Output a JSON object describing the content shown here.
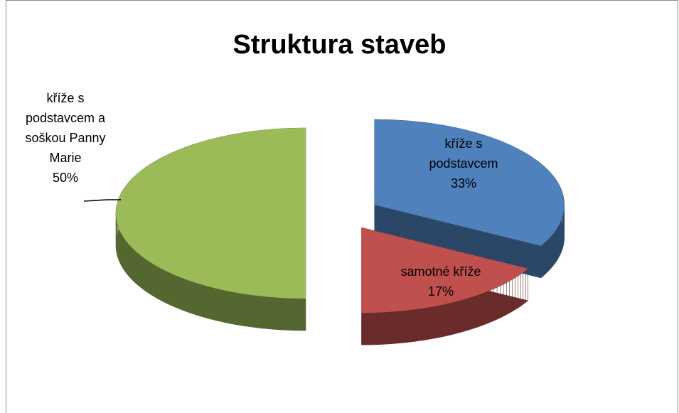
{
  "chart_data": {
    "type": "pie",
    "title": "Struktura staveb",
    "categories": [
      "kříže s podstavcem",
      "samotné kříže",
      "kříže s podstavcem a soškou Panny Marie"
    ],
    "values": [
      33,
      17,
      50
    ],
    "value_labels": [
      "33%",
      "17%",
      "50%"
    ],
    "colors": [
      "#4f81bd",
      "#c0504d",
      "#9bbb59"
    ]
  }
}
